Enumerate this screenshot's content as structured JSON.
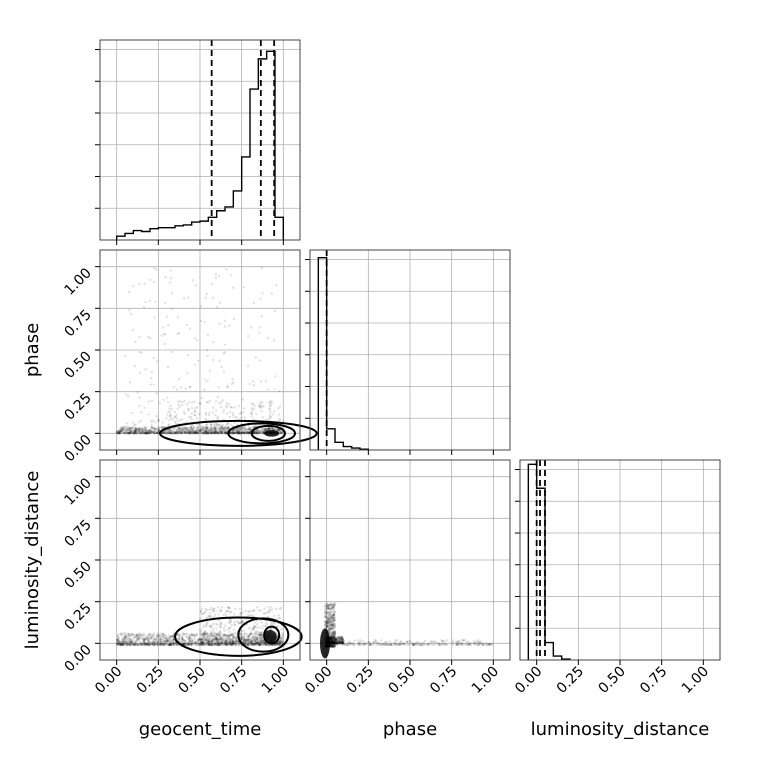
{
  "chart_data": {
    "type": "corner",
    "parameters": [
      "geocent_time",
      "phase",
      "luminosity_distance"
    ],
    "axis_range": [
      -0.1,
      1.1
    ],
    "ticks": [
      0.0,
      0.25,
      0.5,
      0.75,
      1.0
    ],
    "tick_labels": [
      "0.00",
      "0.25",
      "0.50",
      "0.75",
      "1.00"
    ],
    "grid": true,
    "histograms": [
      {
        "parameter": "geocent_time",
        "bin_edges": [
          0.0,
          0.05,
          0.1,
          0.15,
          0.2,
          0.25,
          0.3,
          0.35,
          0.4,
          0.45,
          0.5,
          0.55,
          0.6,
          0.65,
          0.7,
          0.75,
          0.8,
          0.85,
          0.9,
          0.95,
          1.0
        ],
        "counts": [
          0.02,
          0.035,
          0.05,
          0.045,
          0.06,
          0.065,
          0.065,
          0.075,
          0.08,
          0.095,
          0.1,
          0.12,
          0.155,
          0.175,
          0.26,
          0.44,
          0.8,
          0.96,
          1.0,
          0.12
        ],
        "quantiles": [
          0.57,
          0.865,
          0.945
        ],
        "ymax": 1.06
      },
      {
        "parameter": "phase",
        "bin_edges": [
          -0.05,
          0.0,
          0.05,
          0.1,
          0.15,
          0.2,
          0.25
        ],
        "counts": [
          1.0,
          0.11,
          0.04,
          0.018,
          0.01,
          0.004
        ],
        "quantiles": [
          0.0
        ],
        "ymax": 1.04
      },
      {
        "parameter": "luminosity_distance",
        "bin_edges": [
          -0.05,
          0.0,
          0.05,
          0.1,
          0.15,
          0.2
        ],
        "counts": [
          0.9,
          0.79,
          0.08,
          0.018,
          0.004
        ],
        "quantiles": [
          0.0,
          0.02,
          0.05
        ],
        "ymax": 0.92
      }
    ],
    "scatter_panels": [
      {
        "x": "geocent_time",
        "y": "phase",
        "density": [
          {
            "x": [
              0.0,
              1.0
            ],
            "y": [
              0.0,
              0.04
            ],
            "n": 1100
          },
          {
            "x": [
              0.3,
              0.95
            ],
            "y": [
              0.0,
              0.2
            ],
            "n": 260
          },
          {
            "x": [
              0.05,
              1.0
            ],
            "y": [
              0.05,
              1.0
            ],
            "n": 240
          }
        ],
        "contours": [
          {
            "cx": 0.91,
            "cy": 0.0,
            "rx": 0.1,
            "ry": 0.045
          },
          {
            "cx": 0.87,
            "cy": 0.0,
            "rx": 0.2,
            "ry": 0.06
          },
          {
            "cx": 0.73,
            "cy": 0.0,
            "rx": 0.47,
            "ry": 0.075
          }
        ],
        "core": {
          "cx": 0.93,
          "cy": 0.0,
          "rx": 0.045,
          "ry": 0.02
        }
      },
      {
        "x": "geocent_time",
        "y": "luminosity_distance",
        "density": [
          {
            "x": [
              0.0,
              1.0
            ],
            "y": [
              -0.01,
              0.06
            ],
            "n": 1300
          },
          {
            "x": [
              0.5,
              1.0
            ],
            "y": [
              0.0,
              0.22
            ],
            "n": 500
          }
        ],
        "contours": [
          {
            "cx": 0.93,
            "cy": 0.05,
            "rx": 0.045,
            "ry": 0.05
          },
          {
            "cx": 0.88,
            "cy": 0.05,
            "rx": 0.15,
            "ry": 0.1
          },
          {
            "cx": 0.73,
            "cy": 0.04,
            "rx": 0.38,
            "ry": 0.115
          }
        ],
        "core": {
          "cx": 0.92,
          "cy": 0.04,
          "rx": 0.04,
          "ry": 0.04
        }
      },
      {
        "x": "phase",
        "y": "luminosity_distance",
        "density": [
          {
            "x": [
              -0.01,
              1.0
            ],
            "y": [
              -0.01,
              0.02
            ],
            "n": 260
          },
          {
            "x": [
              -0.01,
              0.05
            ],
            "y": [
              -0.02,
              0.24
            ],
            "n": 500
          },
          {
            "x": [
              0.0,
              0.1
            ],
            "y": [
              0.0,
              0.04
            ],
            "n": 300
          }
        ],
        "contours": [],
        "core": {
          "cx": -0.01,
          "cy": 0.0,
          "rx": 0.03,
          "ry": 0.09
        }
      }
    ]
  }
}
